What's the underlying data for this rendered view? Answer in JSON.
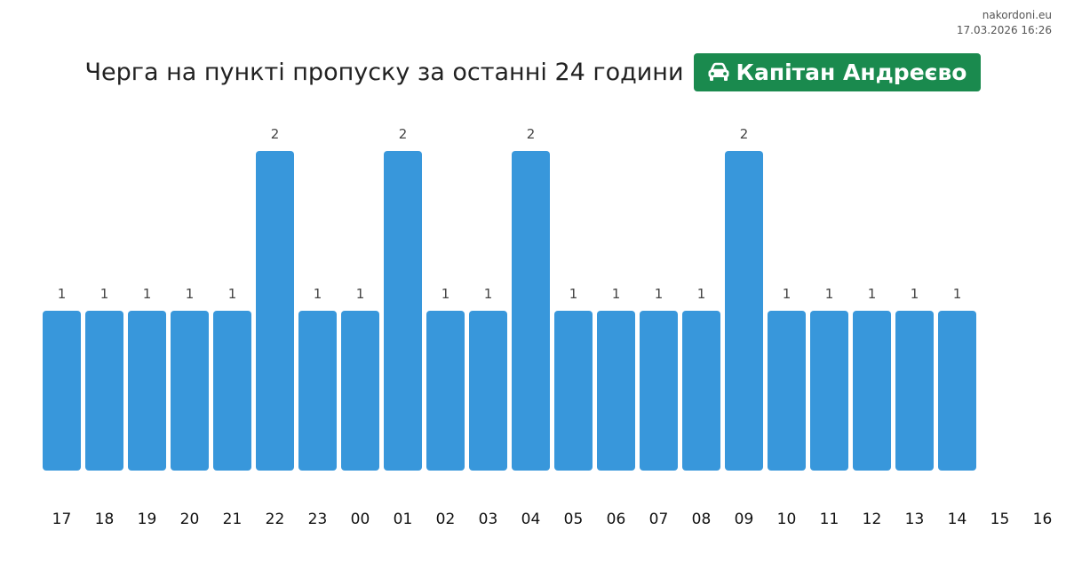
{
  "header": {
    "site": "nakordoni.eu",
    "timestamp": "17.03.2026 16:26",
    "title": "Черга на пункті пропуску за останні 24 години",
    "checkpoint": "Капітан Андреєво",
    "checkpoint_icon": "car-icon"
  },
  "colors": {
    "bar": "#3897db",
    "badge": "#1a8a4e"
  },
  "chart_data": {
    "type": "bar",
    "categories": [
      "17",
      "18",
      "19",
      "20",
      "21",
      "22",
      "23",
      "00",
      "01",
      "02",
      "03",
      "04",
      "05",
      "06",
      "07",
      "08",
      "09",
      "10",
      "11",
      "12",
      "13",
      "14",
      "15",
      "16"
    ],
    "values": [
      1,
      1,
      1,
      1,
      1,
      2,
      1,
      1,
      2,
      1,
      1,
      2,
      1,
      1,
      1,
      1,
      2,
      1,
      1,
      1,
      1,
      1,
      null,
      null
    ],
    "title": "Черга на пункті пропуску за останні 24 години",
    "xlabel": "",
    "ylabel": "",
    "ylim": [
      0,
      2
    ],
    "grid": false,
    "legend": "none"
  }
}
